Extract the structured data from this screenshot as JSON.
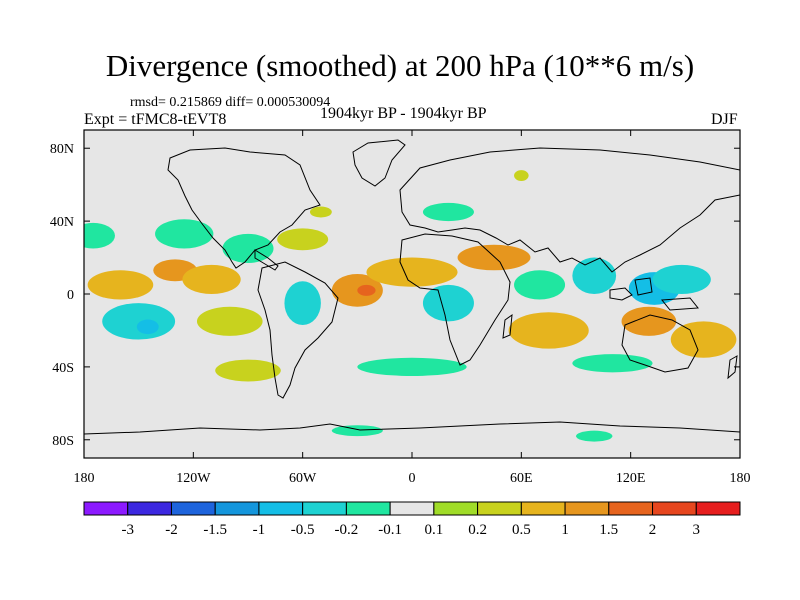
{
  "chart_data": {
    "type": "heatmap",
    "title": "Divergence (smoothed) at 200 hPa (10**6 m/s)",
    "rmsd_line": "rmsd= 0.215869  diff= 0.000530094",
    "expt_line": "Expt = tFMC8-tEVT8",
    "period_line": "1904kyr BP - 1904kyr BP",
    "season": "DJF",
    "xlim": [
      -180,
      180
    ],
    "ylim": [
      -90,
      90
    ],
    "x_ticks": [
      {
        "value": -180,
        "label": "180"
      },
      {
        "value": -120,
        "label": "120W"
      },
      {
        "value": -60,
        "label": "60W"
      },
      {
        "value": 0,
        "label": "0"
      },
      {
        "value": 60,
        "label": "60E"
      },
      {
        "value": 120,
        "label": "120E"
      },
      {
        "value": 180,
        "label": "180"
      }
    ],
    "y_ticks": [
      {
        "value": 80,
        "label": "80N"
      },
      {
        "value": 40,
        "label": "40N"
      },
      {
        "value": 0,
        "label": "0"
      },
      {
        "value": -40,
        "label": "40S"
      },
      {
        "value": -80,
        "label": "80S"
      }
    ],
    "colorbar": {
      "colors": [
        "#8c1aff",
        "#3c28e0",
        "#1e64dc",
        "#1496dc",
        "#14bee6",
        "#1ed2d2",
        "#20e6a0",
        "#e6e6e6",
        "#a0dc28",
        "#c8d21e",
        "#e6b41e",
        "#e6961e",
        "#e6641e",
        "#e6461e",
        "#e61e1e"
      ],
      "labels": [
        "-3",
        "-2",
        "-1.5",
        "-1",
        "-0.5",
        "-0.2",
        "-0.1",
        "0.1",
        "0.2",
        "0.5",
        "1",
        "1.5",
        "2",
        "3"
      ]
    },
    "features": [
      {
        "lon": -160,
        "lat": 5,
        "rx": 18,
        "ry": 8,
        "level": 0.5
      },
      {
        "lon": -130,
        "lat": 13,
        "rx": 12,
        "ry": 6,
        "level": 1
      },
      {
        "lon": -110,
        "lat": 8,
        "rx": 16,
        "ry": 8,
        "level": 0.5
      },
      {
        "lon": -175,
        "lat": 32,
        "rx": 12,
        "ry": 7,
        "level": -0.2
      },
      {
        "lon": -125,
        "lat": 33,
        "rx": 16,
        "ry": 8,
        "level": -0.2
      },
      {
        "lon": -90,
        "lat": 25,
        "rx": 14,
        "ry": 8,
        "level": -0.2
      },
      {
        "lon": -60,
        "lat": 30,
        "rx": 14,
        "ry": 6,
        "level": 0.2
      },
      {
        "lon": -150,
        "lat": -15,
        "rx": 20,
        "ry": 10,
        "level": -0.5
      },
      {
        "lon": -145,
        "lat": -18,
        "rx": 6,
        "ry": 4,
        "level": -1
      },
      {
        "lon": -100,
        "lat": -15,
        "rx": 18,
        "ry": 8,
        "level": 0.2
      },
      {
        "lon": -90,
        "lat": -42,
        "rx": 18,
        "ry": 6,
        "level": 0.2
      },
      {
        "lon": -60,
        "lat": -5,
        "rx": 10,
        "ry": 12,
        "level": -0.5
      },
      {
        "lon": -30,
        "lat": 2,
        "rx": 14,
        "ry": 9,
        "level": 1
      },
      {
        "lon": -25,
        "lat": 2,
        "rx": 5,
        "ry": 3,
        "level": 1.5
      },
      {
        "lon": 0,
        "lat": 12,
        "rx": 25,
        "ry": 8,
        "level": 0.5
      },
      {
        "lon": 20,
        "lat": -5,
        "rx": 14,
        "ry": 10,
        "level": -0.5
      },
      {
        "lon": 45,
        "lat": 20,
        "rx": 20,
        "ry": 7,
        "level": 1
      },
      {
        "lon": 70,
        "lat": 5,
        "rx": 14,
        "ry": 8,
        "level": -0.2
      },
      {
        "lon": 75,
        "lat": -20,
        "rx": 22,
        "ry": 10,
        "level": 0.5
      },
      {
        "lon": 100,
        "lat": 10,
        "rx": 12,
        "ry": 10,
        "level": -0.5
      },
      {
        "lon": 133,
        "lat": 3,
        "rx": 14,
        "ry": 9,
        "level": -1
      },
      {
        "lon": 148,
        "lat": 8,
        "rx": 16,
        "ry": 8,
        "level": -0.5
      },
      {
        "lon": 130,
        "lat": -15,
        "rx": 15,
        "ry": 8,
        "level": 1
      },
      {
        "lon": 160,
        "lat": -25,
        "rx": 18,
        "ry": 10,
        "level": 0.5
      },
      {
        "lon": 60,
        "lat": 65,
        "rx": 4,
        "ry": 3,
        "level": 0.2
      },
      {
        "lon": -50,
        "lat": 45,
        "rx": 6,
        "ry": 3,
        "level": 0.2
      },
      {
        "lon": 20,
        "lat": 45,
        "rx": 14,
        "ry": 5,
        "level": -0.2
      },
      {
        "lon": 0,
        "lat": -40,
        "rx": 30,
        "ry": 5,
        "level": -0.2
      },
      {
        "lon": 110,
        "lat": -38,
        "rx": 22,
        "ry": 5,
        "level": -0.2
      },
      {
        "lon": -30,
        "lat": -75,
        "rx": 14,
        "ry": 3,
        "level": -0.2
      },
      {
        "lon": 100,
        "lat": -78,
        "rx": 10,
        "ry": 3,
        "level": -0.2
      }
    ]
  }
}
